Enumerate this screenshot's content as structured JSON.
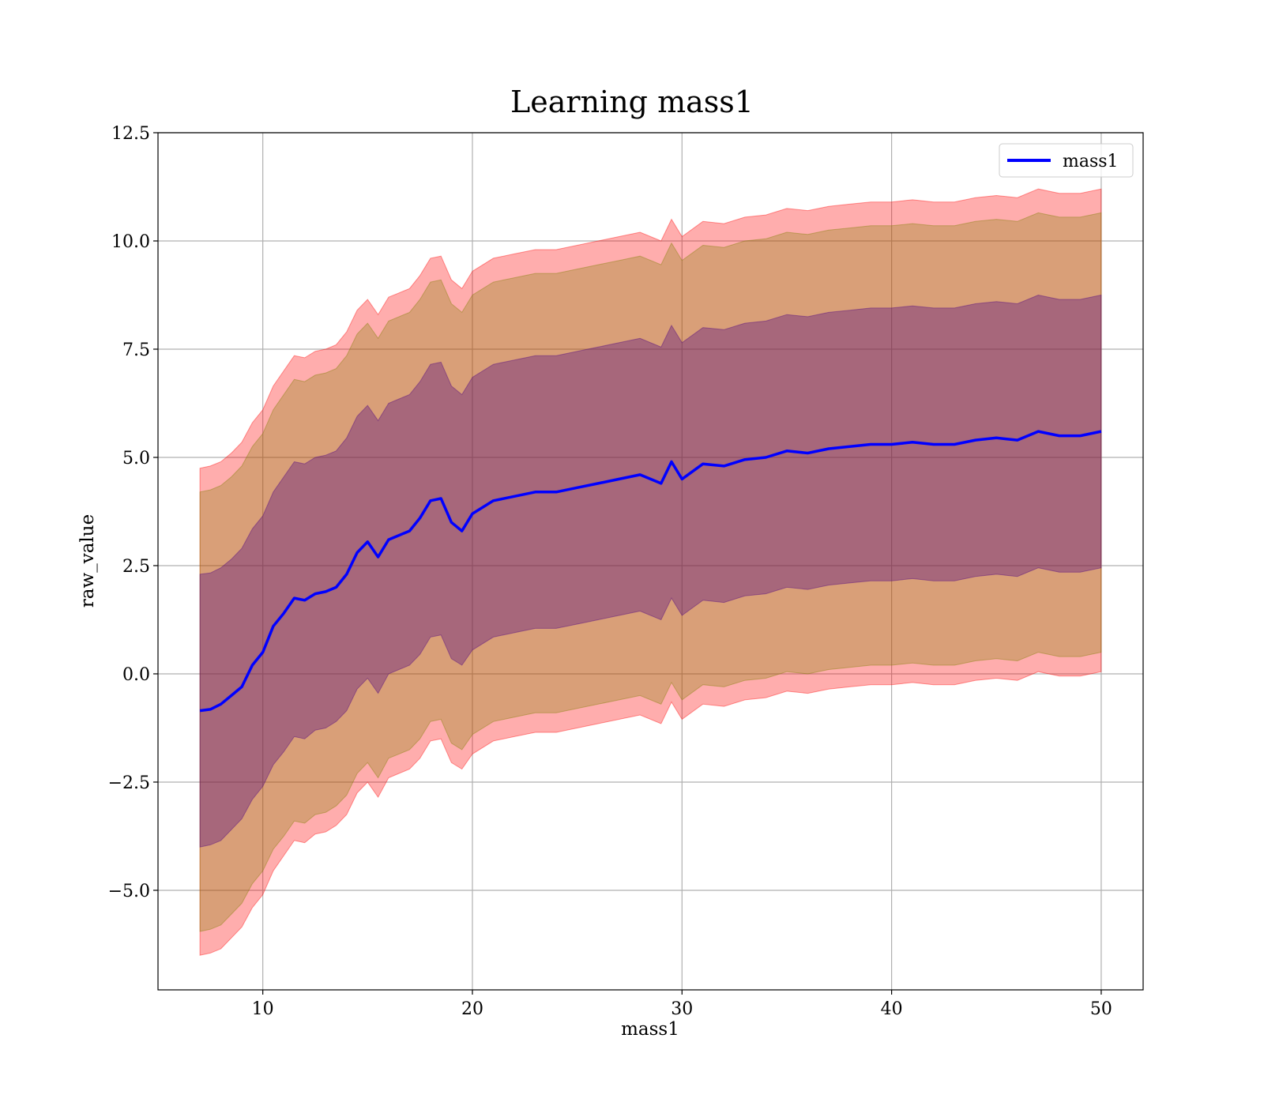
{
  "chart_data": {
    "type": "line",
    "title": "Learning mass1",
    "xlabel": "mass1",
    "ylabel": "raw_value",
    "xlim": [
      5,
      52
    ],
    "ylim": [
      -7.3,
      12.5
    ],
    "xticks": [
      10,
      20,
      30,
      40,
      50
    ],
    "xtick_labels": [
      "10",
      "20",
      "30",
      "40",
      "50"
    ],
    "yticks": [
      -5.0,
      -2.5,
      0.0,
      2.5,
      5.0,
      7.5,
      10.0,
      12.5
    ],
    "ytick_labels": [
      "−5.0",
      "−2.5",
      "0.0",
      "2.5",
      "5.0",
      "7.5",
      "10.0",
      "12.5"
    ],
    "grid": true,
    "legend": {
      "placement": "top-right",
      "entries": [
        "mass1"
      ]
    },
    "colors": {
      "line": "#0000ff",
      "band": "#ff0000",
      "inner_band": "#4b0082",
      "middle_band": "#808000"
    },
    "x": [
      7,
      7.5,
      8,
      8.5,
      9,
      9.5,
      10,
      10.5,
      11,
      11.5,
      12,
      12.5,
      13,
      13.5,
      14,
      14.5,
      15,
      15.5,
      16,
      16.5,
      17,
      17.5,
      18,
      18.5,
      19,
      19.5,
      20,
      21,
      22,
      23,
      24,
      25,
      26,
      27,
      28,
      29,
      29.5,
      30,
      31,
      32,
      33,
      34,
      35,
      36,
      37,
      38,
      39,
      40,
      41,
      42,
      43,
      44,
      45,
      46,
      47,
      48,
      49,
      50
    ],
    "series": [
      {
        "name": "mass1",
        "type": "line",
        "values": [
          -0.85,
          -0.82,
          -0.7,
          -0.5,
          -0.3,
          0.2,
          0.5,
          1.1,
          1.4,
          1.75,
          1.7,
          1.85,
          1.9,
          2.0,
          2.3,
          2.8,
          3.05,
          2.7,
          3.1,
          3.2,
          3.3,
          3.6,
          4.0,
          4.05,
          3.5,
          3.3,
          3.7,
          4.0,
          4.1,
          4.2,
          4.2,
          4.3,
          4.4,
          4.5,
          4.6,
          4.4,
          4.9,
          4.5,
          4.85,
          4.8,
          4.95,
          5.0,
          5.15,
          5.1,
          5.2,
          5.25,
          5.3,
          5.3,
          5.35,
          5.3,
          5.3,
          5.4,
          5.45,
          5.4,
          5.6,
          5.5,
          5.5,
          5.6
        ]
      },
      {
        "name": "",
        "type": "band",
        "lower": [
          -4.0,
          -3.95,
          -3.85,
          -3.6,
          -3.35,
          -2.9,
          -2.6,
          -2.1,
          -1.8,
          -1.45,
          -1.5,
          -1.3,
          -1.25,
          -1.1,
          -0.85,
          -0.35,
          -0.1,
          -0.45,
          0.0,
          0.1,
          0.2,
          0.45,
          0.85,
          0.9,
          0.35,
          0.2,
          0.55,
          0.85,
          0.95,
          1.05,
          1.05,
          1.15,
          1.25,
          1.35,
          1.45,
          1.25,
          1.75,
          1.35,
          1.7,
          1.65,
          1.8,
          1.85,
          2.0,
          1.95,
          2.05,
          2.1,
          2.15,
          2.15,
          2.2,
          2.15,
          2.15,
          2.25,
          2.3,
          2.25,
          2.45,
          2.35,
          2.35,
          2.45
        ],
        "upper": [
          2.3,
          2.33,
          2.45,
          2.65,
          2.9,
          3.35,
          3.65,
          4.2,
          4.55,
          4.9,
          4.85,
          5.0,
          5.05,
          5.15,
          5.45,
          5.95,
          6.2,
          5.85,
          6.25,
          6.35,
          6.45,
          6.75,
          7.15,
          7.2,
          6.65,
          6.45,
          6.85,
          7.15,
          7.25,
          7.35,
          7.35,
          7.45,
          7.55,
          7.65,
          7.75,
          7.55,
          8.05,
          7.65,
          8.0,
          7.95,
          8.1,
          8.15,
          8.3,
          8.25,
          8.35,
          8.4,
          8.45,
          8.45,
          8.5,
          8.45,
          8.45,
          8.55,
          8.6,
          8.55,
          8.75,
          8.65,
          8.65,
          8.75
        ]
      },
      {
        "name": "",
        "type": "band",
        "lower": [
          -5.95,
          -5.9,
          -5.8,
          -5.55,
          -5.3,
          -4.85,
          -4.55,
          -4.05,
          -3.75,
          -3.4,
          -3.45,
          -3.25,
          -3.2,
          -3.05,
          -2.8,
          -2.3,
          -2.05,
          -2.4,
          -1.95,
          -1.85,
          -1.75,
          -1.5,
          -1.1,
          -1.05,
          -1.6,
          -1.75,
          -1.4,
          -1.1,
          -1.0,
          -0.9,
          -0.9,
          -0.8,
          -0.7,
          -0.6,
          -0.5,
          -0.7,
          -0.2,
          -0.6,
          -0.25,
          -0.3,
          -0.15,
          -0.1,
          0.05,
          0.0,
          0.1,
          0.15,
          0.2,
          0.2,
          0.25,
          0.2,
          0.2,
          0.3,
          0.35,
          0.3,
          0.5,
          0.4,
          0.4,
          0.5
        ],
        "upper": [
          4.2,
          4.25,
          4.35,
          4.55,
          4.8,
          5.25,
          5.55,
          6.1,
          6.45,
          6.8,
          6.75,
          6.9,
          6.95,
          7.05,
          7.35,
          7.85,
          8.1,
          7.75,
          8.15,
          8.25,
          8.35,
          8.65,
          9.05,
          9.1,
          8.55,
          8.35,
          8.75,
          9.05,
          9.15,
          9.25,
          9.25,
          9.35,
          9.45,
          9.55,
          9.65,
          9.45,
          9.95,
          9.55,
          9.9,
          9.85,
          10.0,
          10.05,
          10.2,
          10.15,
          10.25,
          10.3,
          10.35,
          10.35,
          10.4,
          10.35,
          10.35,
          10.45,
          10.5,
          10.45,
          10.65,
          10.55,
          10.55,
          10.65
        ]
      },
      {
        "name": "",
        "type": "band",
        "lower": [
          -6.5,
          -6.45,
          -6.35,
          -6.1,
          -5.85,
          -5.4,
          -5.1,
          -4.55,
          -4.2,
          -3.85,
          -3.9,
          -3.7,
          -3.65,
          -3.5,
          -3.25,
          -2.75,
          -2.5,
          -2.85,
          -2.4,
          -2.3,
          -2.2,
          -1.95,
          -1.55,
          -1.5,
          -2.05,
          -2.2,
          -1.85,
          -1.55,
          -1.45,
          -1.35,
          -1.35,
          -1.25,
          -1.15,
          -1.05,
          -0.95,
          -1.15,
          -0.65,
          -1.05,
          -0.7,
          -0.75,
          -0.6,
          -0.55,
          -0.4,
          -0.45,
          -0.35,
          -0.3,
          -0.25,
          -0.25,
          -0.2,
          -0.25,
          -0.25,
          -0.15,
          -0.1,
          -0.15,
          0.05,
          -0.05,
          -0.05,
          0.05
        ],
        "upper": [
          4.75,
          4.8,
          4.9,
          5.1,
          5.35,
          5.8,
          6.1,
          6.65,
          7.0,
          7.35,
          7.3,
          7.45,
          7.5,
          7.6,
          7.9,
          8.4,
          8.65,
          8.3,
          8.7,
          8.8,
          8.9,
          9.2,
          9.6,
          9.65,
          9.1,
          8.9,
          9.3,
          9.6,
          9.7,
          9.8,
          9.8,
          9.9,
          10.0,
          10.1,
          10.2,
          10.0,
          10.5,
          10.1,
          10.45,
          10.4,
          10.55,
          10.6,
          10.75,
          10.7,
          10.8,
          10.85,
          10.9,
          10.9,
          10.95,
          10.9,
          10.9,
          11.0,
          11.05,
          11.0,
          11.2,
          11.1,
          11.1,
          11.2
        ]
      }
    ]
  }
}
